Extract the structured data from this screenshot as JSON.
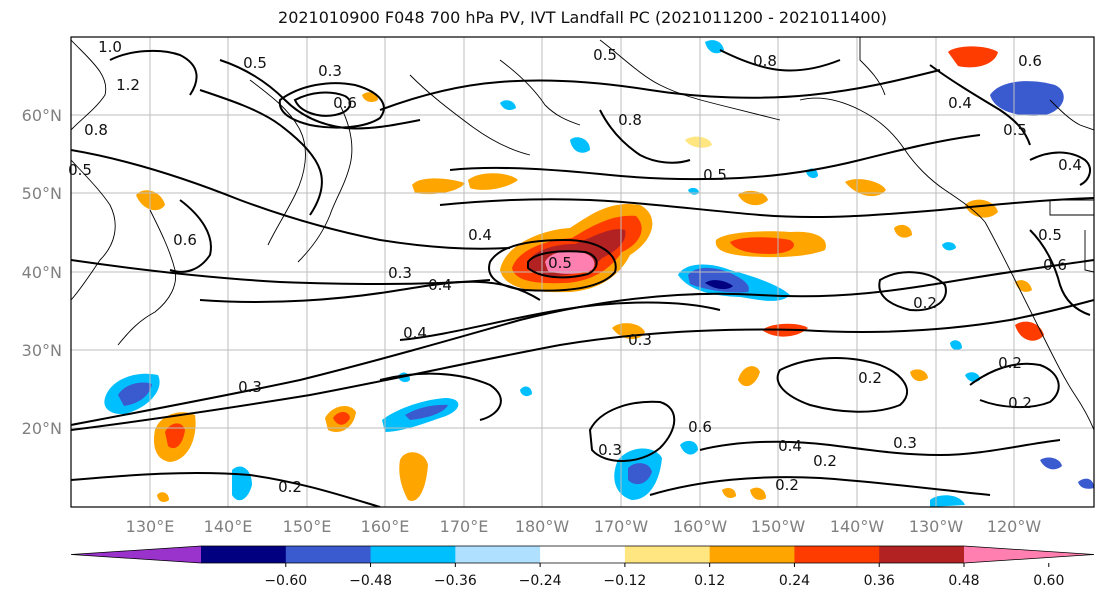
{
  "title": "2021010900 F048 700 hPa PV, IVT Landfall PC (2021011200 - 2021011400)",
  "lat_labels": [
    "60°N",
    "50°N",
    "40°N",
    "30°N",
    "20°N"
  ],
  "lon_labels": [
    "130°E",
    "140°E",
    "150°E",
    "160°E",
    "170°E",
    "180°W",
    "170°W",
    "160°W",
    "150°W",
    "140°W",
    "130°W",
    "120°W"
  ],
  "colorbar": {
    "colors": [
      "#9933cc",
      "#000080",
      "#3a5bd0",
      "#00bfff",
      "#b0e0ff",
      "#ffffff",
      "#ffe680",
      "#ffa500",
      "#ff3c00",
      "#b22222",
      "#ff80b0"
    ],
    "tick_labels": [
      "−0.60",
      "−0.48",
      "−0.36",
      "−0.24",
      "−0.12",
      "0.12",
      "0.24",
      "0.36",
      "0.48",
      "0.60"
    ]
  },
  "contour_labels": [
    "1.0",
    "1.2",
    "0.5",
    "0.3",
    "0.6",
    "0.8",
    "0.5",
    "0.5",
    "0.6",
    "0.8",
    "0.4",
    "0.5",
    "0.4",
    "0.6",
    "0.4",
    "0.5",
    "0.3",
    "0.4",
    "0.2",
    "0.2",
    "0.4",
    "0.3",
    "0.3",
    "0.2",
    "0.4",
    "0.2",
    "0.2",
    "0.3",
    "0.2",
    "0.3",
    "0.2",
    "0.8",
    "0.5",
    "0.6",
    "0.5",
    "0.6"
  ]
}
